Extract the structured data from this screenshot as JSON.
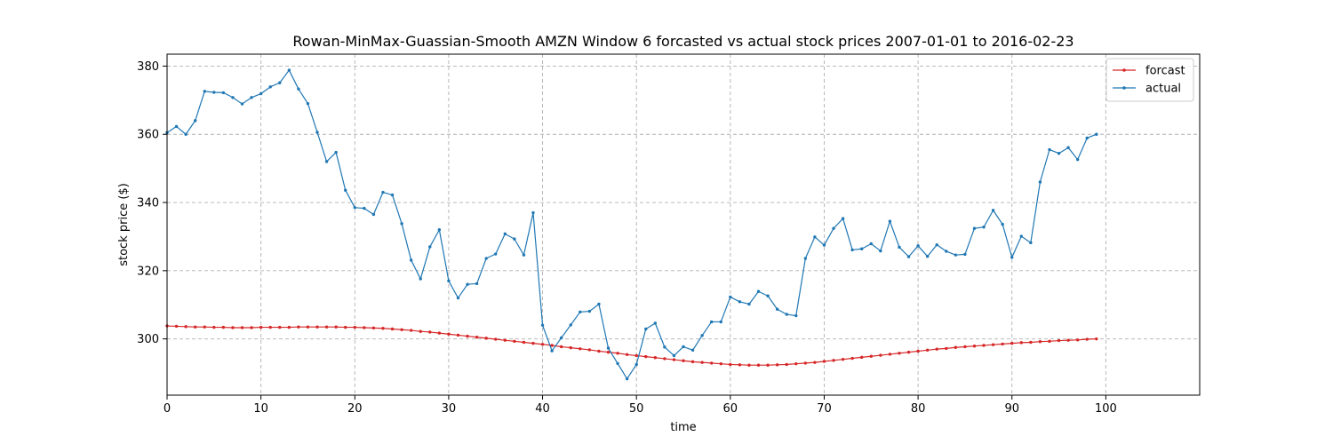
{
  "chart_data": {
    "type": "line",
    "title": "Rowan-MinMax-Guassian-Smooth AMZN Window 6 forcasted vs actual stock prices 2007-01-01 to 2016-02-23",
    "xlabel": "time",
    "ylabel": "stock price ($)",
    "xlim": [
      0,
      110
    ],
    "ylim": [
      283.5,
      383.5
    ],
    "xticks": [
      0,
      10,
      20,
      30,
      40,
      50,
      60,
      70,
      80,
      90,
      100
    ],
    "yticks": [
      300,
      320,
      340,
      360,
      380
    ],
    "grid": true,
    "legend_position": "top-right",
    "x": [
      0,
      1,
      2,
      3,
      4,
      5,
      6,
      7,
      8,
      9,
      10,
      11,
      12,
      13,
      14,
      15,
      16,
      17,
      18,
      19,
      20,
      21,
      22,
      23,
      24,
      25,
      26,
      27,
      28,
      29,
      30,
      31,
      32,
      33,
      34,
      35,
      36,
      37,
      38,
      39,
      40,
      41,
      42,
      43,
      44,
      45,
      46,
      47,
      48,
      49,
      50,
      51,
      52,
      53,
      54,
      55,
      56,
      57,
      58,
      59,
      60,
      61,
      62,
      63,
      64,
      65,
      66,
      67,
      68,
      69,
      70,
      71,
      72,
      73,
      74,
      75,
      76,
      77,
      78,
      79,
      80,
      81,
      82,
      83,
      84,
      85,
      86,
      87,
      88,
      89,
      90,
      91,
      92,
      93,
      94,
      95,
      96,
      97,
      98,
      99
    ],
    "series": [
      {
        "name": "forcast",
        "color": "#d62728",
        "values": [
          303.8,
          303.7,
          303.6,
          303.5,
          303.5,
          303.4,
          303.4,
          303.3,
          303.3,
          303.3,
          303.4,
          303.4,
          303.4,
          303.4,
          303.5,
          303.5,
          303.5,
          303.5,
          303.5,
          303.4,
          303.4,
          303.3,
          303.2,
          303.1,
          302.9,
          302.7,
          302.5,
          302.2,
          302.0,
          301.7,
          301.4,
          301.1,
          300.8,
          300.5,
          300.2,
          299.9,
          299.6,
          299.3,
          299.0,
          298.7,
          298.4,
          298.1,
          297.7,
          297.4,
          297.1,
          296.8,
          296.4,
          296.1,
          295.8,
          295.4,
          295.1,
          294.8,
          294.5,
          294.2,
          293.9,
          293.6,
          293.3,
          293.1,
          292.9,
          292.7,
          292.5,
          292.4,
          292.3,
          292.3,
          292.3,
          292.4,
          292.5,
          292.7,
          292.9,
          293.1,
          293.4,
          293.7,
          294.0,
          294.3,
          294.6,
          294.9,
          295.2,
          295.5,
          295.8,
          296.1,
          296.4,
          296.7,
          297.0,
          297.2,
          297.5,
          297.7,
          297.9,
          298.1,
          298.3,
          298.5,
          298.7,
          298.9,
          299.0,
          299.2,
          299.3,
          299.5,
          299.6,
          299.7,
          299.9,
          300.0
        ]
      },
      {
        "name": "actual",
        "color": "#1f77b4",
        "values": [
          360.5,
          362.3,
          360.0,
          364.0,
          372.6,
          372.3,
          372.2,
          370.8,
          368.9,
          370.8,
          371.9,
          373.9,
          375.1,
          378.8,
          373.3,
          369.0,
          360.6,
          352.0,
          354.7,
          343.6,
          338.5,
          338.3,
          336.5,
          343.0,
          342.2,
          333.8,
          323.1,
          317.6,
          327.0,
          332.0,
          317.0,
          312.0,
          316.0,
          316.2,
          323.6,
          324.9,
          330.8,
          329.3,
          324.6,
          337.0,
          304.0,
          296.5,
          300.3,
          304.1,
          307.9,
          308.1,
          310.2,
          297.3,
          292.8,
          288.3,
          292.5,
          302.9,
          304.6,
          297.6,
          295.1,
          297.7,
          296.7,
          301.0,
          305.0,
          305.0,
          312.3,
          310.9,
          310.2,
          313.9,
          312.6,
          308.7,
          307.2,
          306.8,
          323.6,
          329.9,
          327.5,
          332.4,
          335.3,
          326.1,
          326.4,
          327.9,
          325.8,
          334.5,
          326.9,
          324.1,
          327.3,
          324.2,
          327.6,
          325.7,
          324.6,
          324.8,
          332.4,
          332.8,
          337.7,
          333.6,
          323.9,
          330.1,
          328.2,
          346.0,
          355.5,
          354.4,
          356.1,
          352.6,
          358.9,
          360.0
        ]
      }
    ]
  }
}
